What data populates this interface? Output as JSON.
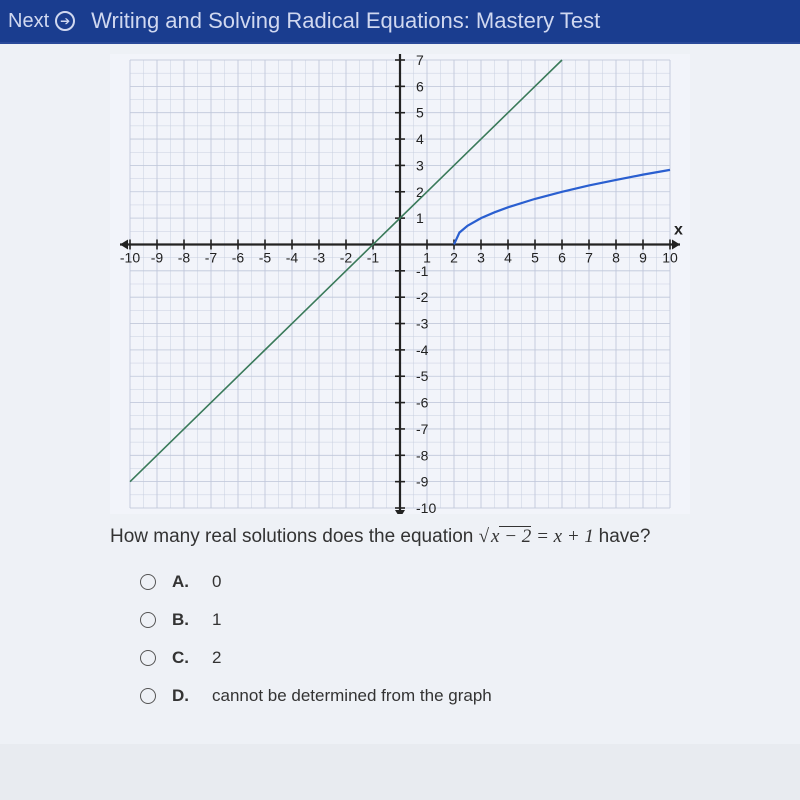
{
  "header": {
    "next_label": "Next",
    "title": "Writing and Solving Radical Equations: Mastery Test"
  },
  "graph": {
    "type": "line",
    "background_color": "#f2f4fa",
    "grid_color": "#c8cfe0",
    "grid_major_color": "#c0c7da",
    "axis_color": "#222222",
    "tick_label_color": "#222222",
    "tick_label_fontsize": 14,
    "axis_label_x": "x",
    "xlim": [
      -10,
      10
    ],
    "ylim": [
      -10,
      7
    ],
    "xtick_step": 1,
    "ytick_step": 1,
    "series": [
      {
        "name": "line_y_eq_x_plus_1",
        "color": "#3a7a5a",
        "line_width": 1.6,
        "points": [
          [
            -10,
            -9
          ],
          [
            -9,
            -8
          ],
          [
            -8,
            -7
          ],
          [
            -7,
            -6
          ],
          [
            -6,
            -5
          ],
          [
            -5,
            -4
          ],
          [
            -4,
            -3
          ],
          [
            -3,
            -2
          ],
          [
            -2,
            -1
          ],
          [
            -1,
            0
          ],
          [
            0,
            1
          ],
          [
            1,
            2
          ],
          [
            2,
            3
          ],
          [
            3,
            4
          ],
          [
            4,
            5
          ],
          [
            5,
            6
          ],
          [
            6,
            7
          ]
        ]
      },
      {
        "name": "sqrt_x_minus_2",
        "color": "#2a5fd0",
        "line_width": 2.2,
        "points": [
          [
            2,
            0
          ],
          [
            2.2,
            0.45
          ],
          [
            2.5,
            0.71
          ],
          [
            3,
            1
          ],
          [
            3.5,
            1.22
          ],
          [
            4,
            1.41
          ],
          [
            5,
            1.73
          ],
          [
            6,
            2
          ],
          [
            7,
            2.24
          ],
          [
            8,
            2.45
          ],
          [
            9,
            2.65
          ],
          [
            10,
            2.83
          ]
        ]
      }
    ]
  },
  "question": {
    "prefix": "How many real solutions does the equation ",
    "eq_sqrt_inner": "x − 2",
    "eq_rhs": " = x + 1 ",
    "suffix": "have?"
  },
  "options": [
    {
      "letter": "A.",
      "text": "0"
    },
    {
      "letter": "B.",
      "text": "1"
    },
    {
      "letter": "C.",
      "text": "2"
    },
    {
      "letter": "D.",
      "text": "cannot be determined from the graph"
    }
  ]
}
